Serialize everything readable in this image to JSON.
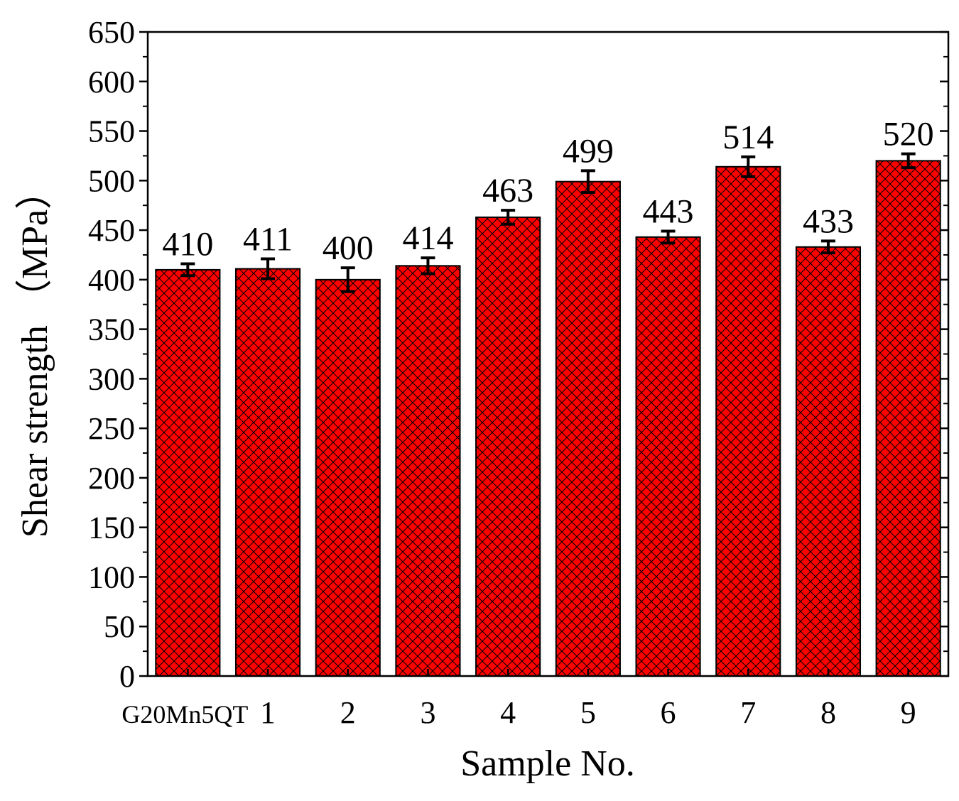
{
  "chart_data": {
    "type": "bar",
    "xlabel": "Sample No.",
    "ylabel": "Shear strength （MPa）",
    "ylim": [
      0,
      650
    ],
    "yticks": [
      0,
      50,
      100,
      150,
      200,
      250,
      300,
      350,
      400,
      450,
      500,
      550,
      600,
      650
    ],
    "categories": [
      "G20Mn5QT",
      "1",
      "2",
      "3",
      "4",
      "5",
      "6",
      "7",
      "8",
      "9"
    ],
    "values": [
      410,
      411,
      400,
      414,
      463,
      499,
      443,
      514,
      433,
      520
    ],
    "value_labels": [
      "410",
      "411",
      "400",
      "414",
      "463",
      "499",
      "443",
      "514",
      "433",
      "520"
    ],
    "error": [
      6,
      10,
      12,
      8,
      7,
      11,
      6,
      10,
      6,
      7
    ],
    "bar_color": "#ff0000",
    "hatch": "crosshatch",
    "grid": false
  }
}
